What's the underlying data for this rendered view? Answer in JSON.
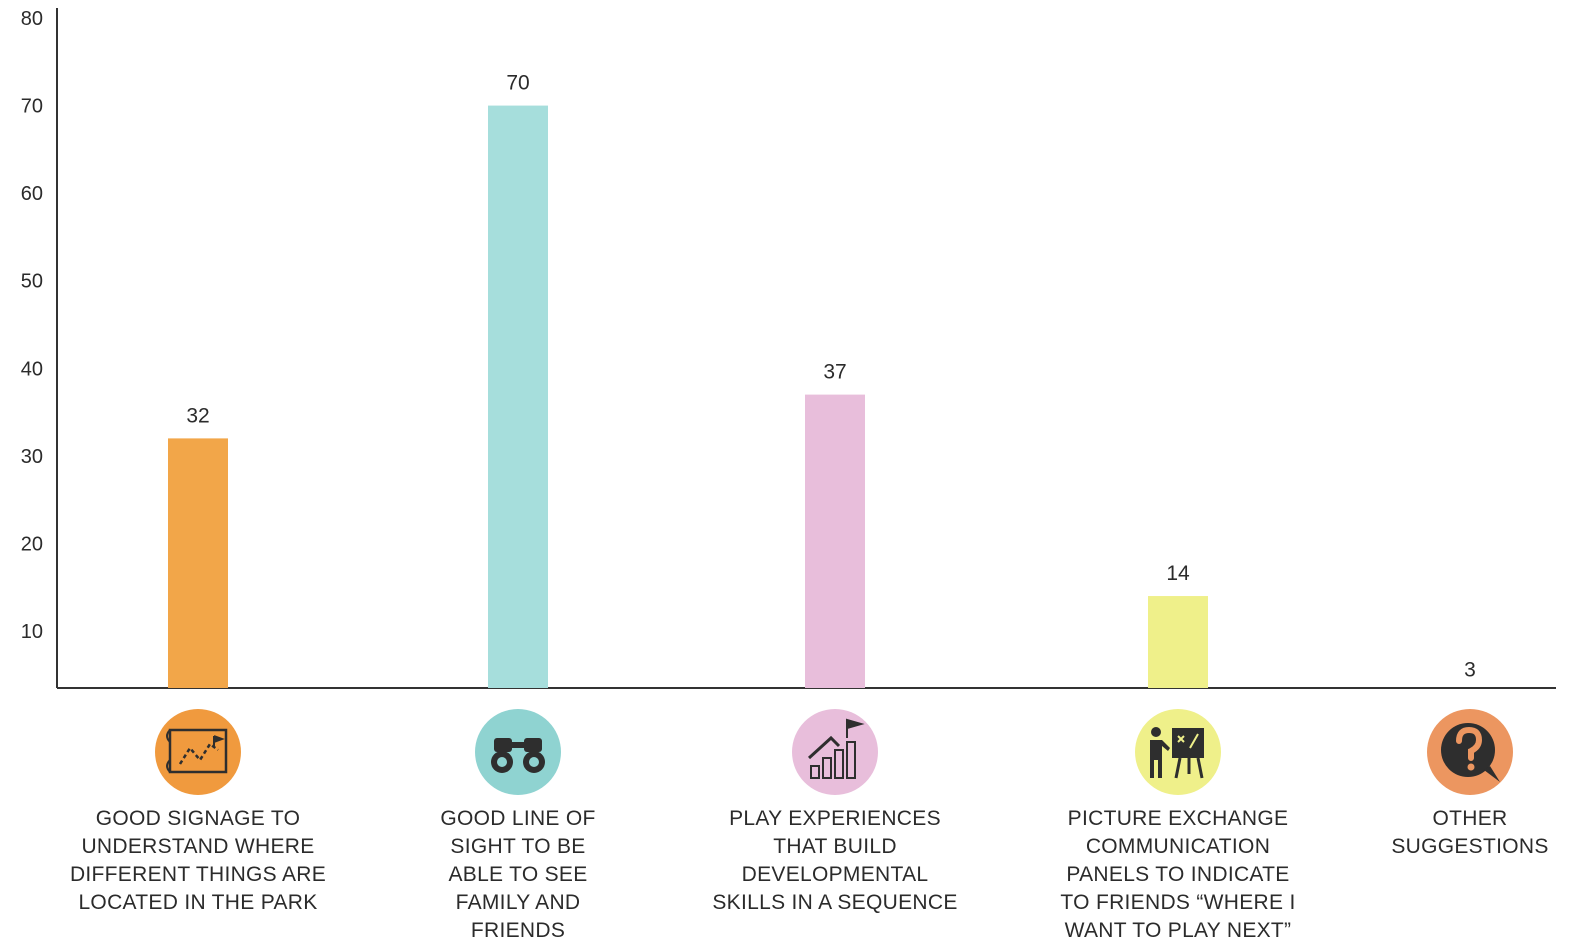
{
  "chart_data": {
    "type": "bar",
    "categories": [
      [
        "GOOD SIGNAGE TO",
        "UNDERSTAND WHERE",
        "DIFFERENT THINGS ARE",
        "LOCATED IN THE PARK"
      ],
      [
        "GOOD LINE OF",
        "SIGHT TO BE",
        "ABLE TO SEE",
        "FAMILY AND",
        "FRIENDS"
      ],
      [
        "PLAY EXPERIENCES",
        "THAT BUILD",
        "DEVELOPMENTAL",
        "SKILLS IN A SEQUENCE"
      ],
      [
        "PICTURE EXCHANGE",
        "COMMUNICATION",
        "PANELS TO INDICATE",
        "TO FRIENDS “WHERE I",
        "WANT TO PLAY NEXT”"
      ],
      [
        "OTHER",
        "SUGGESTIONS"
      ]
    ],
    "values": [
      32,
      70,
      37,
      14,
      3
    ],
    "bar_colors": [
      "#F2A649",
      "#A6DEDC",
      "#E8BEDB",
      "#EFF08A",
      "#EDA064"
    ],
    "icon_colors": [
      "#F09A3E",
      "#8FD3D1",
      "#E8BEDB",
      "#EFF08A",
      "#EC9660"
    ],
    "icons": [
      "map-icon",
      "binoculars-icon",
      "growth-chart-flag-icon",
      "teacher-board-icon",
      "question-icon"
    ],
    "yticks": [
      10,
      20,
      30,
      40,
      50,
      60,
      70,
      80
    ],
    "ylim": [
      3.5,
      80
    ],
    "grid": false,
    "title": "",
    "xlabel": "",
    "ylabel": ""
  }
}
